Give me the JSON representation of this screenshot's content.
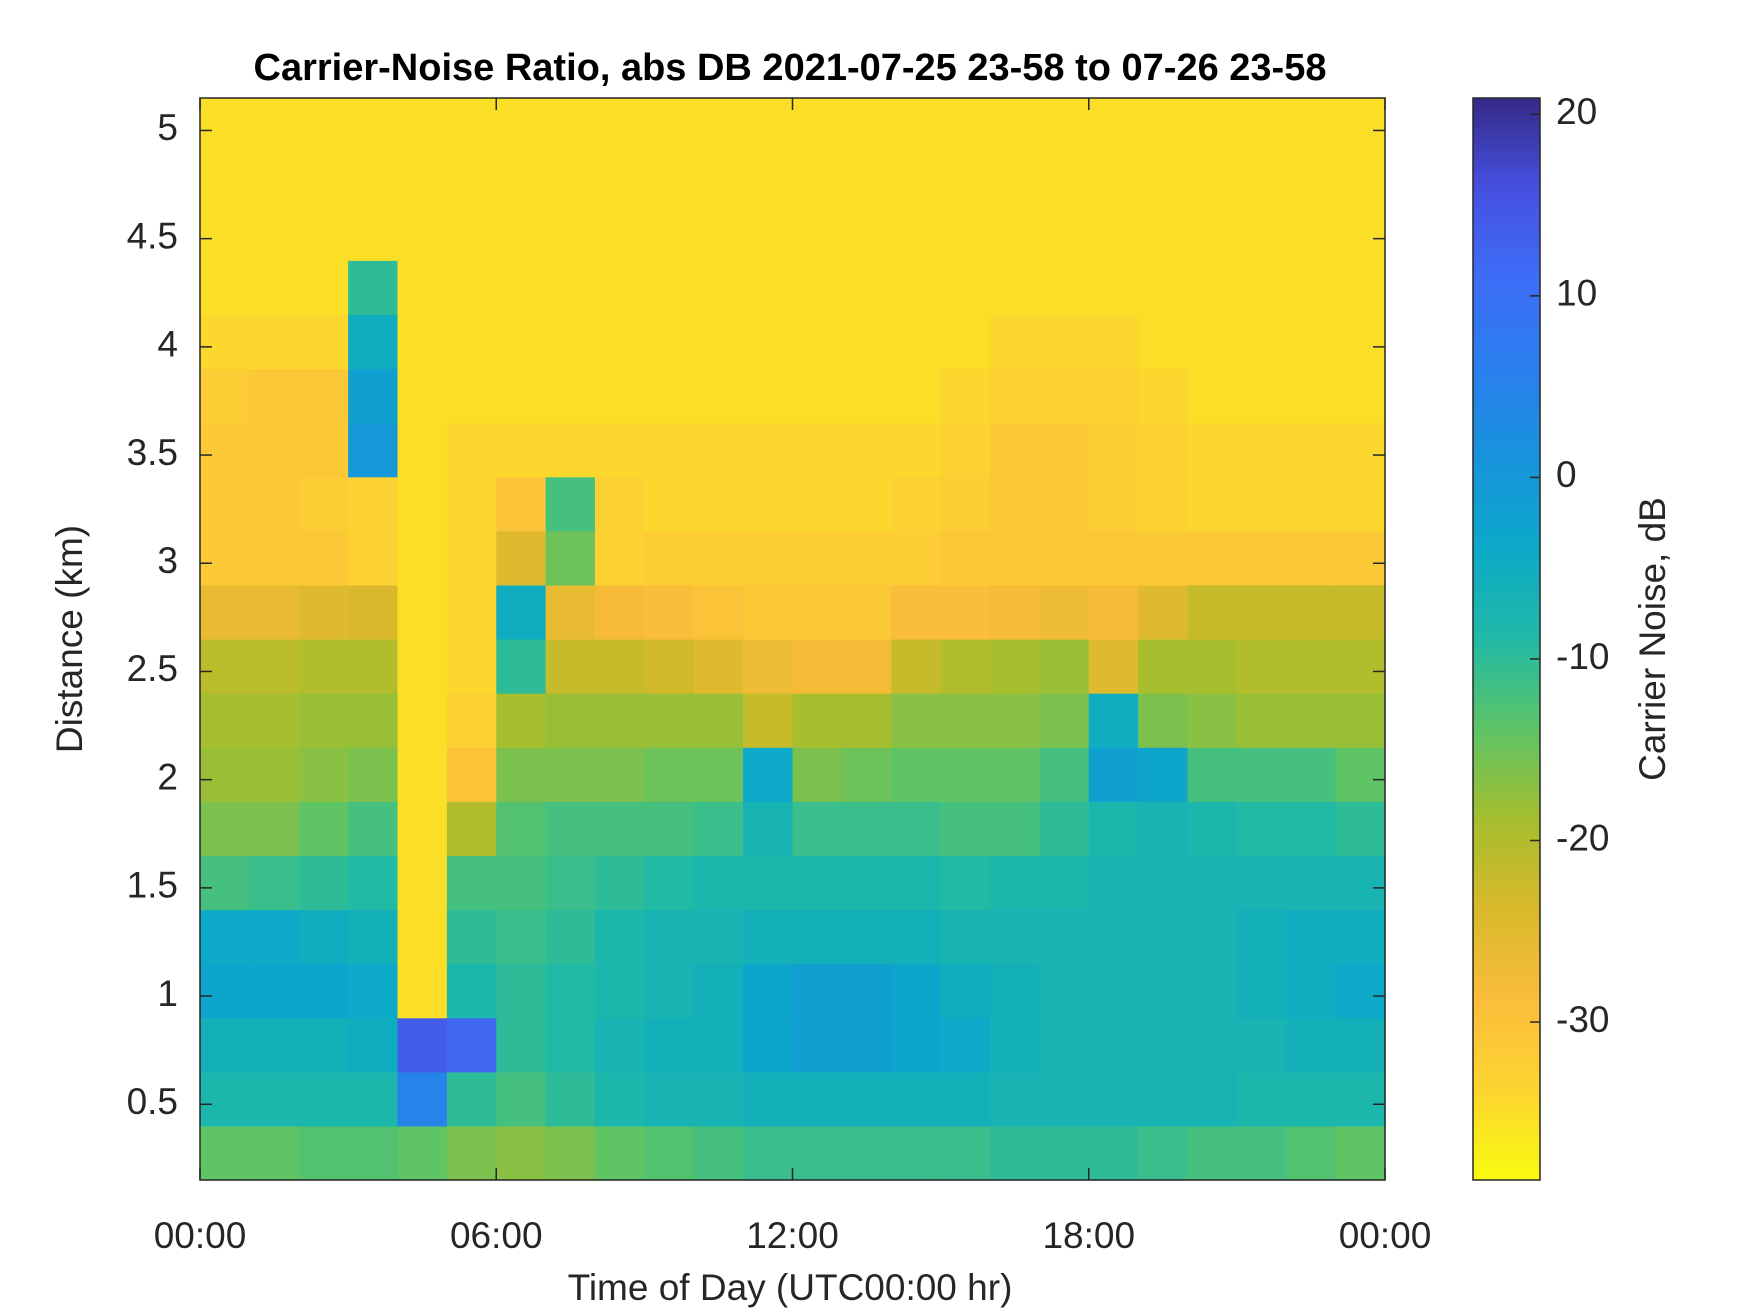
{
  "chart_data": {
    "type": "heatmap",
    "title": "Carrier-Noise Ratio, abs DB 2021-07-25 23-58 to 07-26 23-58",
    "x_label": "Time of Day (UTC00:00 hr)",
    "y_label": "Distance (km)",
    "colorbar_label": "Carrier Noise, dB",
    "x": [
      0.5,
      1.5,
      2.5,
      3.5,
      4.5,
      5.5,
      6.5,
      7.5,
      8.5,
      9.5,
      10.5,
      11.5,
      12.5,
      13.5,
      14.5,
      15.5,
      16.5,
      17.5,
      18.5,
      19.5,
      20.5,
      21.5,
      22.5,
      23.5
    ],
    "y": [
      0.275,
      0.525,
      0.775,
      1.025,
      1.275,
      1.525,
      1.775,
      2.025,
      2.275,
      2.525,
      2.775,
      3.025,
      3.275,
      3.525,
      3.775,
      4.025,
      4.275,
      4.525,
      4.775,
      5.025
    ],
    "z": [
      [
        -14,
        -14,
        -13,
        -13,
        -14,
        -16,
        -17,
        -16,
        -14,
        -13,
        -12,
        -11,
        -11,
        -11,
        -11,
        -11,
        -10,
        -10,
        -10,
        -11,
        -12,
        -12,
        -13,
        -14
      ],
      [
        -8,
        -8,
        -8,
        -8,
        5,
        -10,
        -12,
        -10,
        -8,
        -7,
        -7,
        -6,
        -6,
        -6,
        -6,
        -6,
        -7,
        -7,
        -7,
        -7,
        -7,
        -8,
        -8,
        -8
      ],
      [
        -6,
        -6,
        -6,
        -5,
        14,
        12,
        -10,
        -9,
        -7,
        -6,
        -6,
        -3,
        -2,
        -2,
        -3,
        -4,
        -6,
        -7,
        -7,
        -7,
        -7,
        -7,
        -6,
        -6
      ],
      [
        -3,
        -3,
        -3,
        -4,
        -35,
        -8,
        -10,
        -9,
        -8,
        -7,
        -6,
        -3,
        -2,
        -2,
        -3,
        -5,
        -6,
        -7,
        -7,
        -7,
        -7,
        -6,
        -5,
        -4
      ],
      [
        -4,
        -4,
        -5,
        -6,
        -35,
        -10,
        -11,
        -10,
        -8,
        -7,
        -7,
        -6,
        -6,
        -6,
        -6,
        -7,
        -7,
        -7,
        -7,
        -7,
        -7,
        -6,
        -5,
        -5
      ],
      [
        -12,
        -11,
        -10,
        -9,
        -35,
        -12,
        -12,
        -11,
        -10,
        -9,
        -8,
        -8,
        -8,
        -8,
        -8,
        -9,
        -8,
        -8,
        -7,
        -7,
        -7,
        -7,
        -7,
        -7
      ],
      [
        -16,
        -16,
        -14,
        -12,
        -35,
        -20,
        -13,
        -12,
        -12,
        -12,
        -11,
        -7,
        -11,
        -11,
        -11,
        -12,
        -12,
        -10,
        -8,
        -7,
        -8,
        -9,
        -9,
        -10
      ],
      [
        -18,
        -18,
        -17,
        -16,
        -35,
        -30,
        -16,
        -16,
        -16,
        -15,
        -15,
        -4,
        -16,
        -15,
        -14,
        -14,
        -14,
        -12,
        -2,
        -3,
        -12,
        -12,
        -12,
        -14
      ],
      [
        -19,
        -19,
        -18,
        -18,
        -35,
        -33,
        -19,
        -18,
        -18,
        -18,
        -18,
        -22,
        -19,
        -19,
        -17,
        -17,
        -17,
        -16,
        -5,
        -16,
        -17,
        -18,
        -18,
        -18
      ],
      [
        -21,
        -21,
        -20,
        -20,
        -35,
        -34,
        -10,
        -22,
        -22,
        -23,
        -25,
        -27,
        -28,
        -28,
        -22,
        -20,
        -19,
        -18,
        -25,
        -19,
        -19,
        -20,
        -20,
        -20
      ],
      [
        -26,
        -26,
        -25,
        -24,
        -35,
        -34,
        -5,
        -26,
        -28,
        -29,
        -30,
        -31,
        -31,
        -31,
        -29,
        -29,
        -28,
        -27,
        -28,
        -25,
        -22,
        -22,
        -22,
        -22
      ],
      [
        -31,
        -31,
        -31,
        -33,
        -35,
        -34,
        -25,
        -15,
        -33,
        -32,
        -32,
        -32,
        -32,
        -32,
        -32,
        -31,
        -31,
        -31,
        -31,
        -31,
        -31,
        -31,
        -31,
        -31
      ],
      [
        -31,
        -31,
        -32,
        -33,
        -35,
        -34,
        -30,
        -12,
        -33,
        -34,
        -34,
        -34,
        -34,
        -34,
        -33,
        -32,
        -31,
        -31,
        -32,
        -33,
        -34,
        -34,
        -34,
        -34
      ],
      [
        -31,
        -31,
        -31,
        0,
        -35,
        -34,
        -34,
        -34,
        -34,
        -34,
        -34,
        -34,
        -34,
        -34,
        -34,
        -33,
        -31,
        -31,
        -32,
        -33,
        -34,
        -34,
        -34,
        -34
      ],
      [
        -32,
        -31,
        -31,
        -2,
        -35,
        -35,
        -35,
        -35,
        -35,
        -35,
        -35,
        -35,
        -35,
        -35,
        -35,
        -34,
        -33,
        -33,
        -33,
        -34,
        -35,
        -35,
        -35,
        -35
      ],
      [
        -34,
        -34,
        -34,
        -5,
        -35,
        -35,
        -35,
        -35,
        -35,
        -35,
        -35,
        -35,
        -35,
        -35,
        -35,
        -35,
        -34,
        -34,
        -34,
        -35,
        -35,
        -35,
        -35,
        -35
      ],
      [
        -35,
        -35,
        -35,
        -10,
        -35,
        -35,
        -35,
        -35,
        -35,
        -35,
        -35,
        -35,
        -35,
        -35,
        -35,
        -35,
        -35,
        -35,
        -35,
        -35,
        -35,
        -35,
        -35,
        -35
      ],
      [
        -35,
        -35,
        -35,
        -35,
        -35,
        -35,
        -35,
        -35,
        -35,
        -35,
        -35,
        -35,
        -35,
        -35,
        -35,
        -35,
        -35,
        -35,
        -35,
        -35,
        -35,
        -35,
        -35,
        -35
      ],
      [
        -35,
        -35,
        -35,
        -35,
        -35,
        -35,
        -35,
        -35,
        -35,
        -35,
        -35,
        -35,
        -35,
        -35,
        -35,
        -35,
        -35,
        -35,
        -35,
        -35,
        -35,
        -35,
        -35,
        -35
      ],
      [
        -35,
        -35,
        -35,
        -35,
        -35,
        -35,
        -35,
        -35,
        -35,
        -35,
        -35,
        -35,
        -35,
        -35,
        -35,
        -35,
        -35,
        -35,
        -35,
        -35,
        -35,
        -35,
        -35,
        -35
      ]
    ],
    "xlim": [
      0,
      24
    ],
    "xticks": [
      {
        "value": 0,
        "label": "00:00"
      },
      {
        "value": 6,
        "label": "06:00"
      },
      {
        "value": 12,
        "label": "12:00"
      },
      {
        "value": 18,
        "label": "18:00"
      },
      {
        "value": 24,
        "label": "00:00"
      }
    ],
    "ylim": [
      0.15,
      5.15
    ],
    "yticks": [
      0.5,
      1,
      1.5,
      2,
      2.5,
      3,
      3.5,
      4,
      4.5,
      5
    ],
    "clim": [
      -38.7,
      20.9
    ],
    "cticks": [
      -30,
      -20,
      -10,
      0,
      10,
      20
    ],
    "colormap": [
      "#f9fb0e",
      "#fcd530",
      "#fbbd3b",
      "#d8b92a",
      "#a5be2e",
      "#5dc466",
      "#20baa6",
      "#0ca9c9",
      "#1793db",
      "#2a7fee",
      "#3d6df7",
      "#4650e0",
      "#352a87"
    ]
  }
}
